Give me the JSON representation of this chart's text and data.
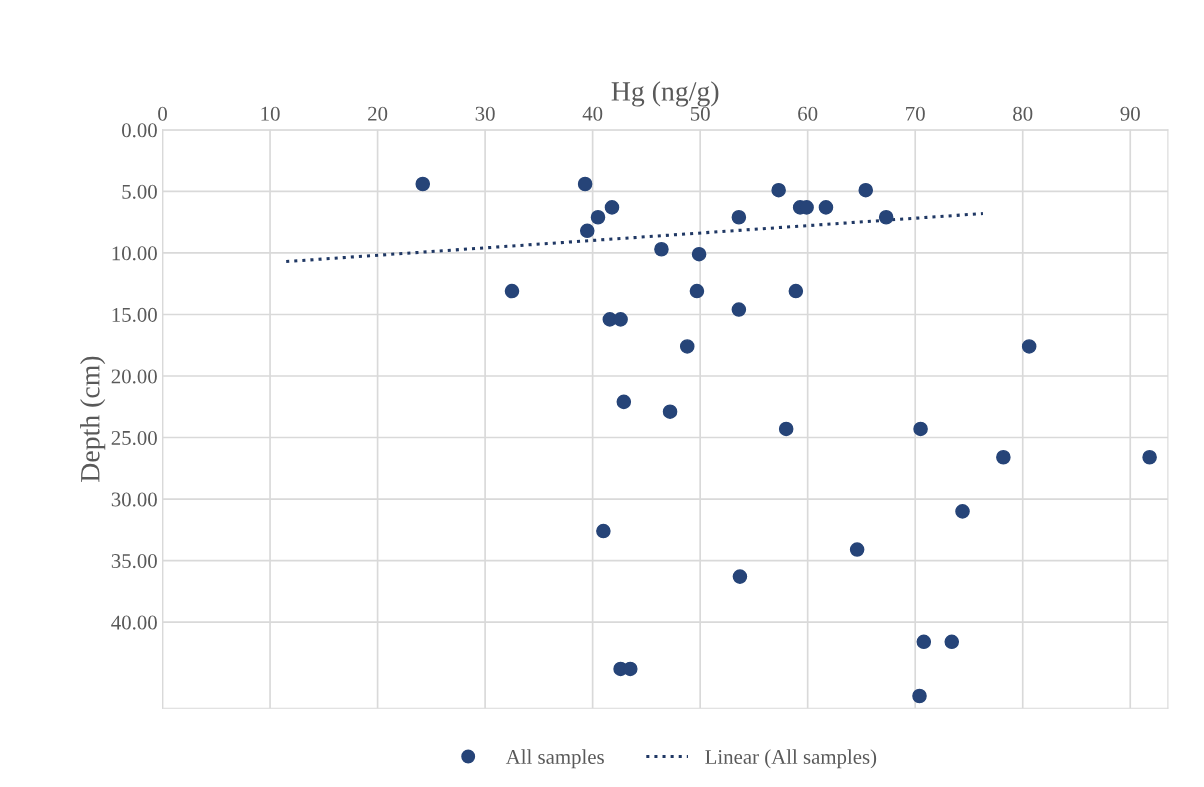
{
  "chart_data": {
    "type": "scatter",
    "xlabel": "Hg (ng/g)",
    "ylabel": "Depth (cm)",
    "xlim": [
      0,
      93.5
    ],
    "xticks": [
      0,
      10,
      20,
      30,
      40,
      50,
      60,
      70,
      80,
      90
    ],
    "ylim": [
      47,
      0
    ],
    "yticks": [
      {
        "value": 0,
        "label": "0.00"
      },
      {
        "value": 5,
        "label": "5.00"
      },
      {
        "value": 10,
        "label": "10.00"
      },
      {
        "value": 15,
        "label": "15.00"
      },
      {
        "value": 20,
        "label": "20.00"
      },
      {
        "value": 25,
        "label": "25.00"
      },
      {
        "value": 30,
        "label": "30.00"
      },
      {
        "value": 35,
        "label": "35.00"
      },
      {
        "value": 40,
        "label": "40.00"
      }
    ],
    "grid": true,
    "legend": "bottom",
    "series": [
      {
        "name": "All samples",
        "color": "#264478",
        "marker": "circle",
        "x": [
          24.2,
          39.3,
          57.3,
          65.4,
          40.5,
          41.8,
          59.3,
          59.9,
          61.7,
          53.6,
          67.3,
          39.5,
          46.4,
          49.9,
          32.5,
          49.7,
          58.9,
          53.6,
          41.6,
          42.6,
          48.8,
          80.6,
          42.9,
          47.2,
          58.0,
          70.5,
          78.2,
          91.8,
          74.4,
          41.0,
          64.6,
          53.7,
          70.8,
          73.4,
          42.6,
          43.5,
          70.4
        ],
        "values": [
          4.4,
          4.4,
          4.9,
          4.9,
          7.1,
          6.3,
          6.3,
          6.3,
          6.3,
          7.1,
          7.1,
          8.2,
          9.7,
          10.1,
          13.1,
          13.1,
          13.1,
          14.6,
          15.4,
          15.4,
          17.6,
          17.6,
          22.1,
          22.9,
          24.3,
          24.3,
          26.6,
          26.6,
          31.0,
          32.6,
          34.1,
          36.3,
          41.6,
          41.6,
          43.8,
          43.8,
          46.0
        ]
      },
      {
        "name": "Linear (All samples)",
        "type": "line",
        "color": "#203864",
        "line_style": "dotted",
        "marker": "none",
        "x": [
          11.5,
          76.3
        ],
        "values": [
          10.7,
          6.8
        ]
      }
    ]
  }
}
